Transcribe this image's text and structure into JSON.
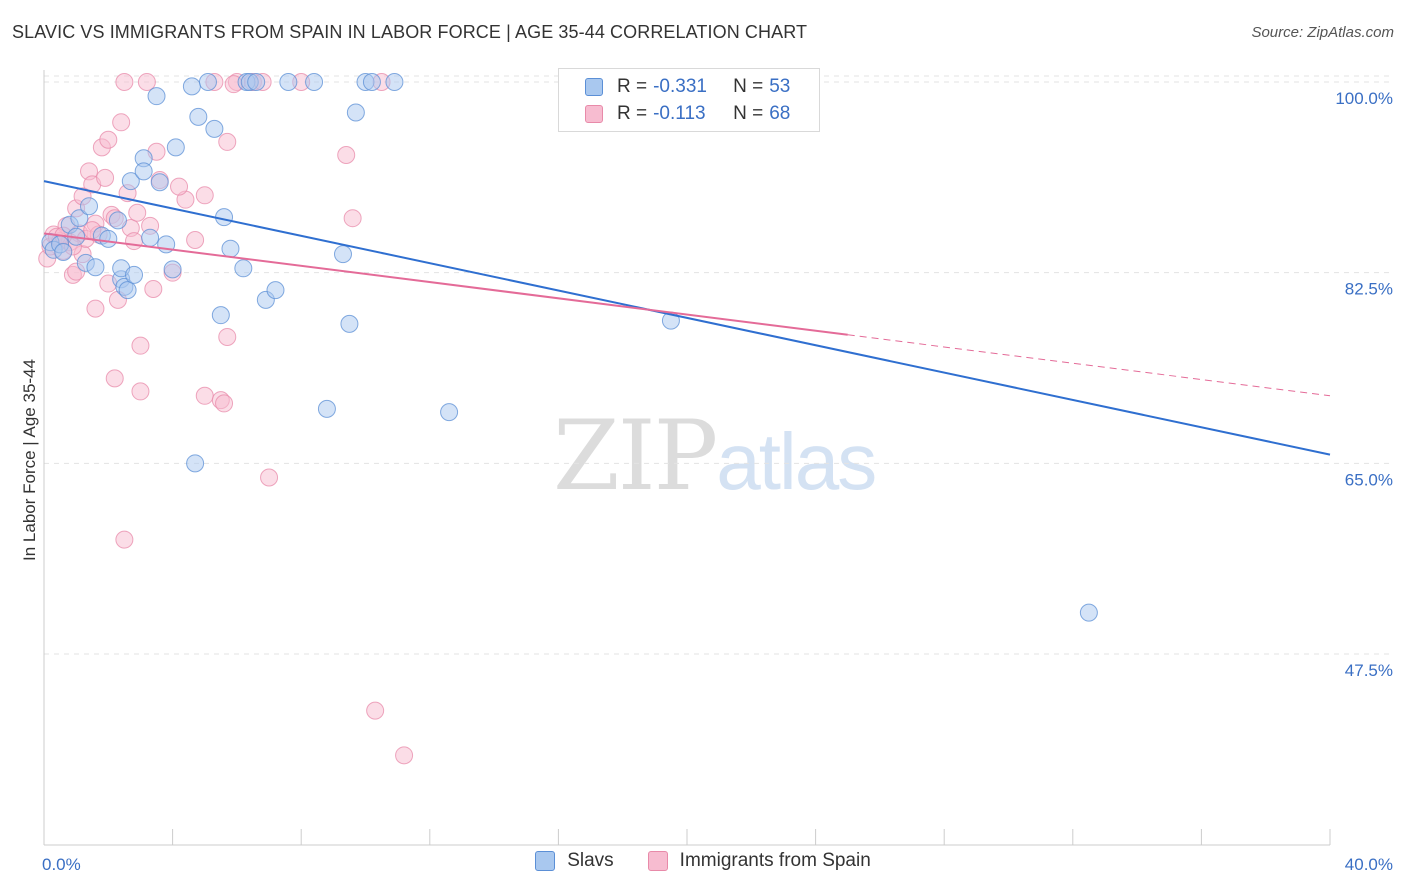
{
  "title": "SLAVIC VS IMMIGRANTS FROM SPAIN IN LABOR FORCE | AGE 35-44 CORRELATION CHART",
  "source": "Source: ZipAtlas.com",
  "watermark": {
    "zip": "ZIP",
    "atlas": "atlas"
  },
  "colors": {
    "slavs_fill": "#a9c8ef",
    "slavs_stroke": "#5b8fd6",
    "slavs_line": "#2f6fd0",
    "spain_fill": "#f7bcd0",
    "spain_stroke": "#e88aa9",
    "spain_line": "#e46b98",
    "grid": "#e3e3e3",
    "tick_label": "#3a6fc4"
  },
  "stats": {
    "slavs": {
      "r_label": "R =",
      "r_value": "-0.331",
      "n_label": "N =",
      "n_value": "53"
    },
    "spain": {
      "r_label": "R =",
      "r_value": "-0.113",
      "n_label": "N =",
      "n_value": "68"
    }
  },
  "legend": {
    "slavs": "Slavs",
    "spain": "Immigrants from Spain"
  },
  "chart_data": {
    "type": "scatter",
    "title": "SLAVIC VS IMMIGRANTS FROM SPAIN IN LABOR FORCE | AGE 35-44 CORRELATION CHART",
    "xlabel": "",
    "ylabel": "In Labor Force | Age 35-44",
    "xlim": [
      0,
      40
    ],
    "ylim": [
      33,
      101.5
    ],
    "x_tick_labels": [
      "0.0%",
      "40.0%"
    ],
    "y_ticks": [
      100,
      82.5,
      65,
      47.5
    ],
    "y_tick_labels": [
      "100.0%",
      "82.5%",
      "65.0%",
      "47.5%"
    ],
    "grid": true,
    "legend_position": "bottom",
    "series": [
      {
        "name": "Slavs",
        "points": [
          [
            0.2,
            85.3
          ],
          [
            0.3,
            84.6
          ],
          [
            0.5,
            85.1
          ],
          [
            0.6,
            84.4
          ],
          [
            0.8,
            86.9
          ],
          [
            1.0,
            85.8
          ],
          [
            1.1,
            87.5
          ],
          [
            1.3,
            83.4
          ],
          [
            1.4,
            88.6
          ],
          [
            1.6,
            83.0
          ],
          [
            1.8,
            85.9
          ],
          [
            2.0,
            85.6
          ],
          [
            2.3,
            87.3
          ],
          [
            2.4,
            81.9
          ],
          [
            2.4,
            82.9
          ],
          [
            2.5,
            81.2
          ],
          [
            2.6,
            80.9
          ],
          [
            2.7,
            90.9
          ],
          [
            2.8,
            82.3
          ],
          [
            3.1,
            93.0
          ],
          [
            3.1,
            91.8
          ],
          [
            3.3,
            85.7
          ],
          [
            3.5,
            98.7
          ],
          [
            3.6,
            90.8
          ],
          [
            3.8,
            85.1
          ],
          [
            4.0,
            82.8
          ],
          [
            4.1,
            94.0
          ],
          [
            4.6,
            99.6
          ],
          [
            4.7,
            65.0
          ],
          [
            4.8,
            96.8
          ],
          [
            5.1,
            100.0
          ],
          [
            5.3,
            95.7
          ],
          [
            5.5,
            78.6
          ],
          [
            5.6,
            87.6
          ],
          [
            5.8,
            84.7
          ],
          [
            6.2,
            82.9
          ],
          [
            6.3,
            100.0
          ],
          [
            6.4,
            100.0
          ],
          [
            6.6,
            100.0
          ],
          [
            6.9,
            80.0
          ],
          [
            7.2,
            80.9
          ],
          [
            7.6,
            100.0
          ],
          [
            8.4,
            100.0
          ],
          [
            8.8,
            70.0
          ],
          [
            9.3,
            84.2
          ],
          [
            9.5,
            77.8
          ],
          [
            9.7,
            97.2
          ],
          [
            10.0,
            100.0
          ],
          [
            10.2,
            100.0
          ],
          [
            10.9,
            100.0
          ],
          [
            12.6,
            69.7
          ],
          [
            19.5,
            78.1
          ],
          [
            32.5,
            51.3
          ]
        ]
      },
      {
        "name": "Immigrants from Spain",
        "points": [
          [
            0.1,
            83.8
          ],
          [
            0.2,
            84.9
          ],
          [
            0.3,
            86.0
          ],
          [
            0.5,
            85.4
          ],
          [
            0.6,
            84.5
          ],
          [
            0.7,
            86.8
          ],
          [
            0.8,
            85.3
          ],
          [
            0.9,
            82.3
          ],
          [
            1.0,
            88.4
          ],
          [
            1.1,
            86.1
          ],
          [
            1.2,
            84.2
          ],
          [
            1.3,
            85.6
          ],
          [
            1.4,
            91.8
          ],
          [
            1.5,
            90.6
          ],
          [
            1.6,
            87.0
          ],
          [
            1.7,
            86.0
          ],
          [
            1.8,
            94.0
          ],
          [
            1.9,
            91.2
          ],
          [
            2.0,
            94.7
          ],
          [
            2.1,
            87.8
          ],
          [
            2.2,
            72.8
          ],
          [
            2.2,
            87.5
          ],
          [
            2.3,
            80.0
          ],
          [
            2.4,
            96.3
          ],
          [
            2.5,
            100.0
          ],
          [
            2.6,
            89.8
          ],
          [
            2.7,
            86.6
          ],
          [
            2.8,
            85.4
          ],
          [
            3.0,
            75.8
          ],
          [
            3.0,
            71.6
          ],
          [
            3.2,
            100.0
          ],
          [
            3.4,
            81.0
          ],
          [
            3.5,
            93.6
          ],
          [
            3.6,
            91.0
          ],
          [
            4.0,
            82.5
          ],
          [
            4.4,
            89.2
          ],
          [
            4.7,
            85.5
          ],
          [
            5.0,
            89.6
          ],
          [
            5.0,
            71.2
          ],
          [
            5.3,
            100.0
          ],
          [
            5.5,
            70.8
          ],
          [
            5.6,
            70.5
          ],
          [
            5.7,
            76.6
          ],
          [
            5.7,
            94.5
          ],
          [
            6.0,
            100.0
          ],
          [
            6.5,
            100.0
          ],
          [
            7.0,
            63.7
          ],
          [
            9.4,
            93.3
          ],
          [
            9.6,
            87.5
          ],
          [
            10.5,
            100.0
          ],
          [
            10.3,
            42.3
          ],
          [
            11.2,
            38.2
          ],
          [
            21.5,
            100.0
          ],
          [
            1.6,
            79.2
          ],
          [
            2.5,
            58.0
          ],
          [
            3.3,
            86.8
          ],
          [
            1.2,
            89.5
          ],
          [
            0.4,
            85.8
          ],
          [
            0.9,
            84.9
          ],
          [
            1.5,
            86.4
          ],
          [
            2.9,
            88.0
          ],
          [
            4.2,
            90.4
          ],
          [
            5.9,
            99.8
          ],
          [
            6.8,
            100.0
          ],
          [
            8.0,
            100.0
          ],
          [
            0.6,
            85.9
          ],
          [
            1.0,
            82.6
          ],
          [
            2.0,
            81.5
          ]
        ]
      }
    ],
    "trendlines": [
      {
        "series": "Slavs",
        "x": [
          0,
          40
        ],
        "y": [
          90.9,
          65.8
        ]
      },
      {
        "series": "Immigrants from Spain",
        "x": [
          0,
          25
        ],
        "y": [
          86.1,
          76.8
        ],
        "dashed_extension_to": [
          40,
          71.2
        ]
      }
    ]
  }
}
